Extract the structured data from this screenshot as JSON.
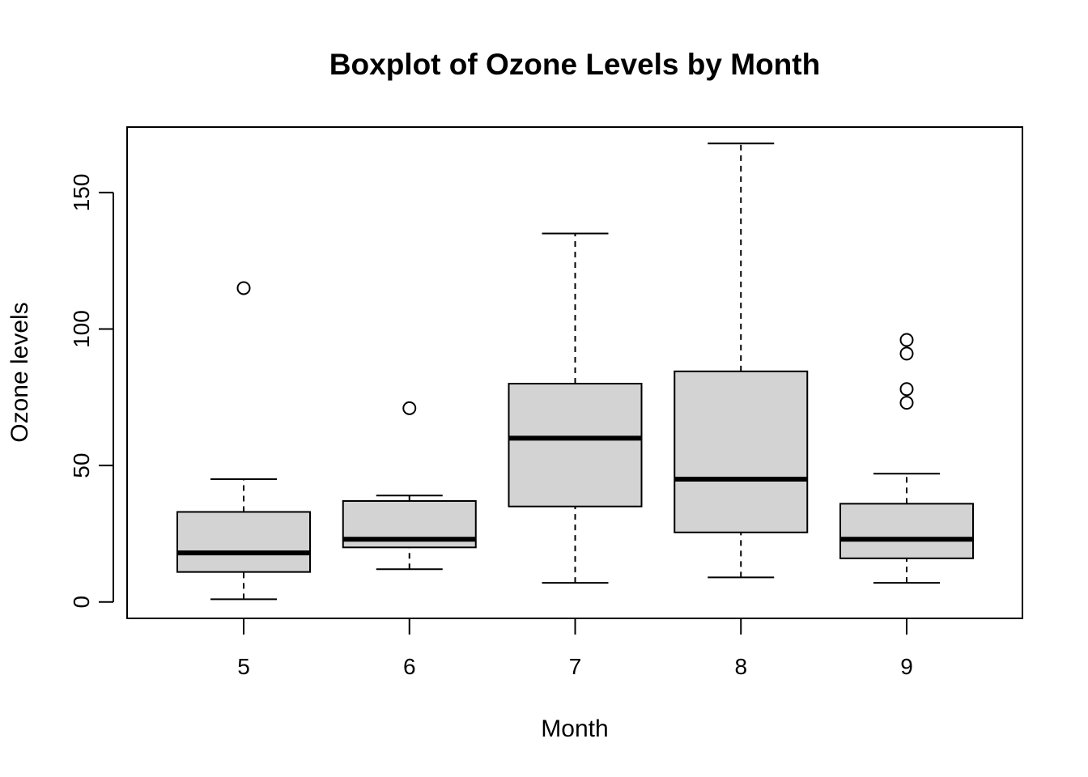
{
  "chart_data": {
    "type": "boxplot",
    "title": "Boxplot of Ozone Levels by Month",
    "xlabel": "Month",
    "ylabel": "Ozone levels",
    "ylim": [
      -6,
      174
    ],
    "yticks": [
      0,
      50,
      100,
      150
    ],
    "grid": false,
    "legend": "none",
    "box_fill": "#d3d3d3",
    "line_color": "#000000",
    "categories": [
      "5",
      "6",
      "7",
      "8",
      "9"
    ],
    "boxes": [
      {
        "category": "5",
        "whisker_low": 1,
        "q1": 11,
        "median": 18,
        "q3": 33,
        "whisker_high": 45,
        "outliers": [
          115
        ]
      },
      {
        "category": "6",
        "whisker_low": 12,
        "q1": 20,
        "median": 23,
        "q3": 37,
        "whisker_high": 39,
        "outliers": [
          71
        ]
      },
      {
        "category": "7",
        "whisker_low": 7,
        "q1": 35,
        "median": 60,
        "q3": 80,
        "whisker_high": 135,
        "outliers": []
      },
      {
        "category": "8",
        "whisker_low": 9,
        "q1": 25.5,
        "median": 45,
        "q3": 84.5,
        "whisker_high": 168,
        "outliers": []
      },
      {
        "category": "9",
        "whisker_low": 7,
        "q1": 16,
        "median": 23,
        "q3": 36,
        "whisker_high": 47,
        "outliers": [
          73,
          78,
          91,
          96
        ]
      }
    ]
  }
}
